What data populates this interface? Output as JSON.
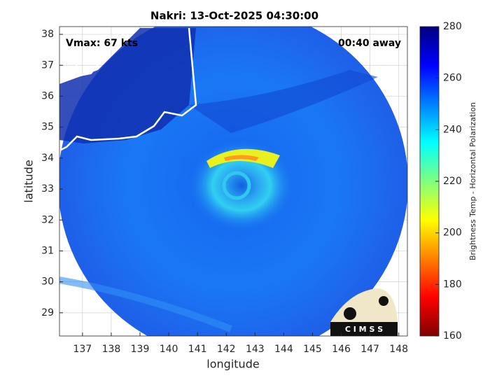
{
  "chart_data": {
    "type": "image",
    "title": "Nakri: 13-Oct-2025 04:30:00",
    "annotations": [
      "Vmax: 67 kts",
      "00:40 away"
    ],
    "xlabel": "longitude",
    "ylabel": "latitude",
    "xlim": [
      136.2,
      148.3
    ],
    "ylim": [
      28.25,
      38.25
    ],
    "xticks": [
      137,
      138,
      139,
      140,
      141,
      142,
      143,
      144,
      145,
      146,
      147,
      148
    ],
    "yticks": [
      29,
      30,
      31,
      32,
      33,
      34,
      35,
      36,
      37,
      38
    ],
    "grid": true,
    "colorbar": {
      "label": "Brightness Temp - Horizontal Polarization",
      "lim": [
        160,
        280
      ],
      "ticks": [
        160,
        180,
        200,
        220,
        240,
        260,
        280
      ],
      "colormap": [
        "#800000",
        "#ff0000",
        "#ff8000",
        "#ffff00",
        "#80ff80",
        "#00ffff",
        "#0080ff",
        "#0000ff",
        "#000080"
      ]
    },
    "logo": "C I M S S"
  }
}
